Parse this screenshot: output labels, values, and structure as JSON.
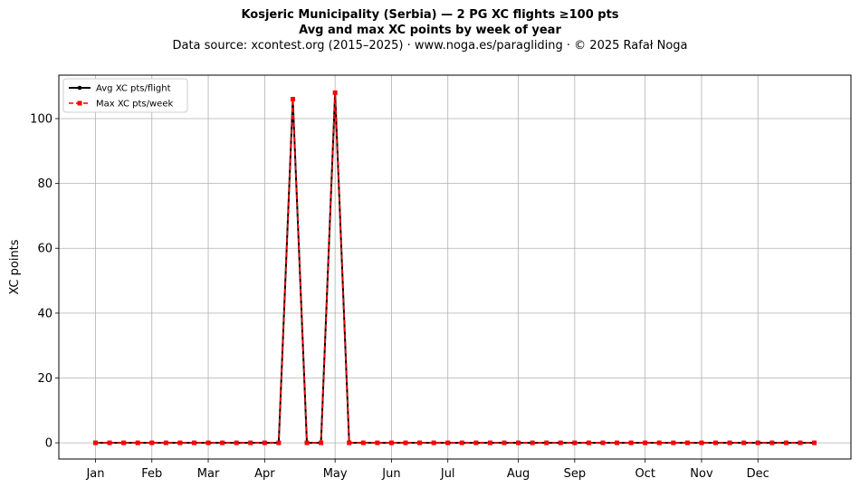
{
  "chart_data": {
    "type": "line",
    "title": "Kosjeric Municipality (Serbia)  —  2 PG XC flights ≥100 pts",
    "subtitle": "Avg and max XC points by week of year",
    "source_line": "Data source: xcontest.org (2015–2025)  ·  www.noga.es/paragliding  ·  © 2025 Rafał Noga",
    "xlabel": "",
    "ylabel": "XC points",
    "ylim": [
      -5,
      113.4
    ],
    "xlim": [
      -2.6,
      53.6
    ],
    "yticks": [
      0,
      20,
      40,
      60,
      80,
      100
    ],
    "xticks": [
      {
        "label": "Jan",
        "x": 0
      },
      {
        "label": "Feb",
        "x": 4
      },
      {
        "label": "Mar",
        "x": 8
      },
      {
        "label": "Apr",
        "x": 12
      },
      {
        "label": "May",
        "x": 17
      },
      {
        "label": "Jun",
        "x": 21
      },
      {
        "label": "Jul",
        "x": 25
      },
      {
        "label": "Aug",
        "x": 30
      },
      {
        "label": "Sep",
        "x": 34
      },
      {
        "label": "Oct",
        "x": 39
      },
      {
        "label": "Nov",
        "x": 43
      },
      {
        "label": "Dec",
        "x": 47
      }
    ],
    "grid": true,
    "legend": "top-left",
    "x": [
      0,
      1,
      2,
      3,
      4,
      5,
      6,
      7,
      8,
      9,
      10,
      11,
      12,
      13,
      14,
      15,
      16,
      17,
      18,
      19,
      20,
      21,
      22,
      23,
      24,
      25,
      26,
      27,
      28,
      29,
      30,
      31,
      32,
      33,
      34,
      35,
      36,
      37,
      38,
      39,
      40,
      41,
      42,
      43,
      44,
      45,
      46,
      47,
      48,
      49,
      50,
      51
    ],
    "series": [
      {
        "name": "Avg XC pts/flight",
        "color": "#000000",
        "values": [
          0,
          0,
          0,
          0,
          0,
          0,
          0,
          0,
          0,
          0,
          0,
          0,
          0,
          0,
          106,
          0,
          0,
          108,
          0,
          0,
          0,
          0,
          0,
          0,
          0,
          0,
          0,
          0,
          0,
          0,
          0,
          0,
          0,
          0,
          0,
          0,
          0,
          0,
          0,
          0,
          0,
          0,
          0,
          0,
          0,
          0,
          0,
          0,
          0,
          0,
          0,
          0
        ]
      },
      {
        "name": "Max XC pts/week",
        "color": "#ff0000",
        "values": [
          0,
          0,
          0,
          0,
          0,
          0,
          0,
          0,
          0,
          0,
          0,
          0,
          0,
          0,
          106,
          0,
          0,
          108,
          0,
          0,
          0,
          0,
          0,
          0,
          0,
          0,
          0,
          0,
          0,
          0,
          0,
          0,
          0,
          0,
          0,
          0,
          0,
          0,
          0,
          0,
          0,
          0,
          0,
          0,
          0,
          0,
          0,
          0,
          0,
          0,
          0,
          0
        ]
      }
    ]
  }
}
